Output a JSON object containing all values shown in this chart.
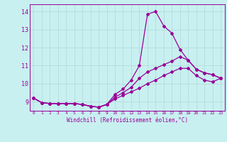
{
  "xlabel": "Windchill (Refroidissement éolien,°C)",
  "bg_color": "#c8f0f0",
  "line_color": "#990099",
  "grid_color": "#b0d8d8",
  "xlim": [
    -0.5,
    23.5
  ],
  "ylim": [
    8.5,
    14.4
  ],
  "xticks": [
    0,
    1,
    2,
    3,
    4,
    5,
    6,
    7,
    8,
    9,
    10,
    11,
    12,
    13,
    14,
    15,
    16,
    17,
    18,
    19,
    20,
    21,
    22,
    23
  ],
  "yticks": [
    9,
    10,
    11,
    12,
    13,
    14
  ],
  "line1_x": [
    0,
    1,
    2,
    3,
    4,
    5,
    6,
    7,
    8,
    9,
    10,
    11,
    12,
    13,
    14,
    15,
    16,
    17,
    18,
    19,
    20,
    21,
    22,
    23
  ],
  "line1_y": [
    9.2,
    8.95,
    8.9,
    8.9,
    8.9,
    8.9,
    8.85,
    8.75,
    8.7,
    8.85,
    9.4,
    9.7,
    10.2,
    11.0,
    13.85,
    14.0,
    13.2,
    12.8,
    11.9,
    11.3,
    10.8,
    10.6,
    10.5,
    10.3
  ],
  "line2_x": [
    0,
    1,
    2,
    3,
    4,
    5,
    6,
    7,
    8,
    9,
    10,
    11,
    12,
    13,
    14,
    15,
    16,
    17,
    18,
    19,
    20,
    21,
    22,
    23
  ],
  "line2_y": [
    9.2,
    8.95,
    8.9,
    8.9,
    8.9,
    8.9,
    8.85,
    8.75,
    8.7,
    8.85,
    9.25,
    9.5,
    9.8,
    10.3,
    10.65,
    10.85,
    11.05,
    11.25,
    11.5,
    11.3,
    10.8,
    10.6,
    10.5,
    10.3
  ],
  "line3_x": [
    0,
    1,
    2,
    3,
    4,
    5,
    6,
    7,
    8,
    9,
    10,
    11,
    12,
    13,
    14,
    15,
    16,
    17,
    18,
    19,
    20,
    21,
    22,
    23
  ],
  "line3_y": [
    9.2,
    8.95,
    8.9,
    8.9,
    8.9,
    8.9,
    8.85,
    8.75,
    8.7,
    8.85,
    9.15,
    9.35,
    9.55,
    9.75,
    10.0,
    10.2,
    10.45,
    10.65,
    10.85,
    10.85,
    10.45,
    10.2,
    10.1,
    10.3
  ]
}
